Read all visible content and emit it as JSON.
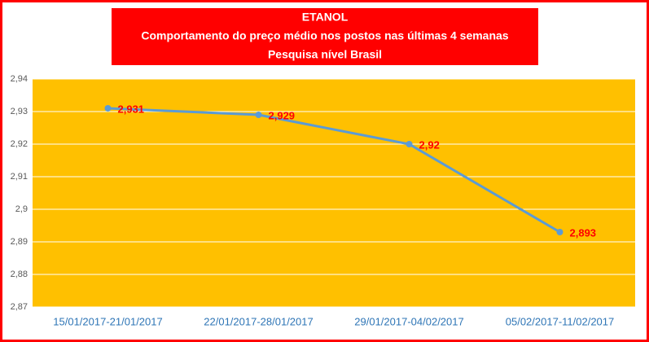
{
  "chart_data": {
    "type": "line",
    "title": "ETANOL",
    "subtitle": [
      "Comportamento do preço médio nos postos nas últimas 4 semanas",
      "Pesquisa nível Brasil"
    ],
    "categories": [
      "15/01/2017-21/01/2017",
      "22/01/2017-28/01/2017",
      "29/01/2017-04/02/2017",
      "05/02/2017-11/02/2017"
    ],
    "series": [
      {
        "name": "Etanol",
        "color": "#5b9bd5",
        "values": [
          2.931,
          2.929,
          2.92,
          2.893
        ],
        "value_labels": [
          "2,931",
          "2,929",
          "2,92",
          "2,893"
        ]
      }
    ],
    "ylim": [
      2.87,
      2.94
    ],
    "yticks": [
      {
        "value": 2.87,
        "label": "2,87"
      },
      {
        "value": 2.88,
        "label": "2,88"
      },
      {
        "value": 2.89,
        "label": "2,89"
      },
      {
        "value": 2.9,
        "label": "2,9"
      },
      {
        "value": 2.91,
        "label": "2,91"
      },
      {
        "value": 2.92,
        "label": "2,92"
      },
      {
        "value": 2.93,
        "label": "2,93"
      },
      {
        "value": 2.94,
        "label": "2,94"
      }
    ],
    "grid": true
  }
}
